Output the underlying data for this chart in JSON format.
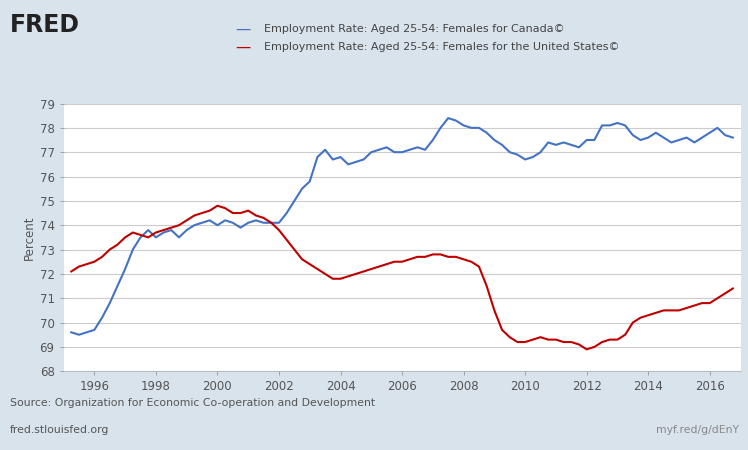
{
  "canada_x": [
    1995.25,
    1995.5,
    1995.75,
    1996.0,
    1996.25,
    1996.5,
    1996.75,
    1997.0,
    1997.25,
    1997.5,
    1997.75,
    1998.0,
    1998.25,
    1998.5,
    1998.75,
    1999.0,
    1999.25,
    1999.5,
    1999.75,
    2000.0,
    2000.25,
    2000.5,
    2000.75,
    2001.0,
    2001.25,
    2001.5,
    2001.75,
    2002.0,
    2002.25,
    2002.5,
    2002.75,
    2003.0,
    2003.25,
    2003.5,
    2003.75,
    2004.0,
    2004.25,
    2004.5,
    2004.75,
    2005.0,
    2005.25,
    2005.5,
    2005.75,
    2006.0,
    2006.25,
    2006.5,
    2006.75,
    2007.0,
    2007.25,
    2007.5,
    2007.75,
    2008.0,
    2008.25,
    2008.5,
    2008.75,
    2009.0,
    2009.25,
    2009.5,
    2009.75,
    2010.0,
    2010.25,
    2010.5,
    2010.75,
    2011.0,
    2011.25,
    2011.5,
    2011.75,
    2012.0,
    2012.25,
    2012.5,
    2012.75,
    2013.0,
    2013.25,
    2013.5,
    2013.75,
    2014.0,
    2014.25,
    2014.5,
    2014.75,
    2015.0,
    2015.25,
    2015.5,
    2015.75,
    2016.0,
    2016.25,
    2016.5,
    2016.75
  ],
  "canada_y": [
    69.6,
    69.5,
    69.6,
    69.7,
    70.2,
    70.8,
    71.5,
    72.2,
    73.0,
    73.5,
    73.8,
    73.5,
    73.7,
    73.8,
    73.5,
    73.8,
    74.0,
    74.1,
    74.2,
    74.0,
    74.2,
    74.1,
    73.9,
    74.1,
    74.2,
    74.1,
    74.1,
    74.1,
    74.5,
    75.0,
    75.5,
    75.8,
    76.8,
    77.1,
    76.7,
    76.8,
    76.5,
    76.6,
    76.7,
    77.0,
    77.1,
    77.2,
    77.0,
    77.0,
    77.1,
    77.2,
    77.1,
    77.5,
    78.0,
    78.4,
    78.3,
    78.1,
    78.0,
    78.0,
    77.8,
    77.5,
    77.3,
    77.0,
    76.9,
    76.7,
    76.8,
    77.0,
    77.4,
    77.3,
    77.4,
    77.3,
    77.2,
    77.5,
    77.5,
    78.1,
    78.1,
    78.2,
    78.1,
    77.7,
    77.5,
    77.6,
    77.8,
    77.6,
    77.4,
    77.5,
    77.6,
    77.4,
    77.6,
    77.8,
    78.0,
    77.7,
    77.6
  ],
  "us_x": [
    1995.25,
    1995.5,
    1995.75,
    1996.0,
    1996.25,
    1996.5,
    1996.75,
    1997.0,
    1997.25,
    1997.5,
    1997.75,
    1998.0,
    1998.25,
    1998.5,
    1998.75,
    1999.0,
    1999.25,
    1999.5,
    1999.75,
    2000.0,
    2000.25,
    2000.5,
    2000.75,
    2001.0,
    2001.25,
    2001.5,
    2001.75,
    2002.0,
    2002.25,
    2002.5,
    2002.75,
    2003.0,
    2003.25,
    2003.5,
    2003.75,
    2004.0,
    2004.25,
    2004.5,
    2004.75,
    2005.0,
    2005.25,
    2005.5,
    2005.75,
    2006.0,
    2006.25,
    2006.5,
    2006.75,
    2007.0,
    2007.25,
    2007.5,
    2007.75,
    2008.0,
    2008.25,
    2008.5,
    2008.75,
    2009.0,
    2009.25,
    2009.5,
    2009.75,
    2010.0,
    2010.25,
    2010.5,
    2010.75,
    2011.0,
    2011.25,
    2011.5,
    2011.75,
    2012.0,
    2012.25,
    2012.5,
    2012.75,
    2013.0,
    2013.25,
    2013.5,
    2013.75,
    2014.0,
    2014.25,
    2014.5,
    2014.75,
    2015.0,
    2015.25,
    2015.5,
    2015.75,
    2016.0,
    2016.25,
    2016.5,
    2016.75
  ],
  "us_y": [
    72.1,
    72.3,
    72.4,
    72.5,
    72.7,
    73.0,
    73.2,
    73.5,
    73.7,
    73.6,
    73.5,
    73.7,
    73.8,
    73.9,
    74.0,
    74.2,
    74.4,
    74.5,
    74.6,
    74.8,
    74.7,
    74.5,
    74.5,
    74.6,
    74.4,
    74.3,
    74.1,
    73.8,
    73.4,
    73.0,
    72.6,
    72.4,
    72.2,
    72.0,
    71.8,
    71.8,
    71.9,
    72.0,
    72.1,
    72.2,
    72.3,
    72.4,
    72.5,
    72.5,
    72.6,
    72.7,
    72.7,
    72.8,
    72.8,
    72.7,
    72.7,
    72.6,
    72.5,
    72.3,
    71.5,
    70.5,
    69.7,
    69.4,
    69.2,
    69.2,
    69.3,
    69.4,
    69.3,
    69.3,
    69.2,
    69.2,
    69.1,
    68.9,
    69.0,
    69.2,
    69.3,
    69.3,
    69.5,
    70.0,
    70.2,
    70.3,
    70.4,
    70.5,
    70.5,
    70.5,
    70.6,
    70.7,
    70.8,
    70.8,
    71.0,
    71.2,
    71.4
  ],
  "canada_color": "#4472C4",
  "us_color": "#C00000",
  "background_color": "#d9e3ec",
  "plot_background": "#ffffff",
  "canada_label": "Employment Rate: Aged 25-54: Females for Canada©",
  "us_label": "Employment Rate: Aged 25-54: Females for the United States©",
  "ylabel": "Percent",
  "ylim": [
    68,
    79
  ],
  "yticks": [
    68,
    69,
    70,
    71,
    72,
    73,
    74,
    75,
    76,
    77,
    78,
    79
  ],
  "xlim": [
    1995.0,
    2017.0
  ],
  "xticks": [
    1996,
    1998,
    2000,
    2002,
    2004,
    2006,
    2008,
    2010,
    2012,
    2014,
    2016
  ],
  "source_text": "Source: Organization for Economic Co-operation and Development",
  "fred_url": "fred.stlouisfed.org",
  "myf_url": "myf.red/g/dEnY",
  "line_width": 1.5,
  "tick_color": "#888888",
  "label_color": "#555555"
}
